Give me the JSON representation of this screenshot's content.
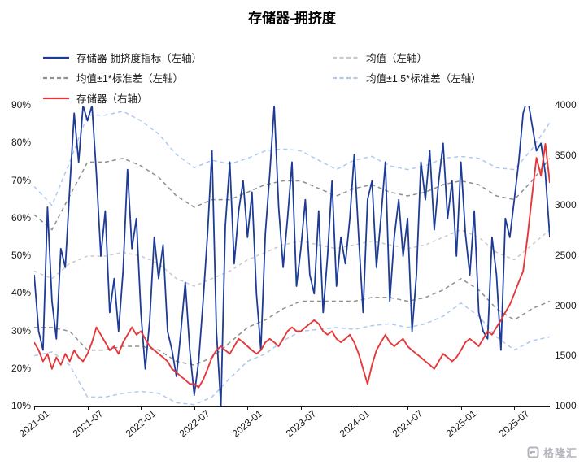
{
  "title": "存储器-拥挤度",
  "watermark": {
    "text": "格隆汇"
  },
  "chart_data": {
    "type": "line",
    "title": "存储器-拥挤度",
    "legend_position": "top-left, two columns",
    "grid": false,
    "xlabel": "",
    "x_unit": "months since 2021-01",
    "x_range": [
      0,
      58
    ],
    "x_tick_months": [
      0,
      6,
      12,
      18,
      24,
      30,
      36,
      42,
      48,
      54
    ],
    "x_tick_labels": [
      "2021-01",
      "2021-07",
      "2022-01",
      "2022-07",
      "2023-01",
      "2023-07",
      "2024-01",
      "2024-07",
      "2025-01",
      "2025-07"
    ],
    "left_axis": {
      "min": 10,
      "max": 90,
      "unit": "%",
      "tick_values": [
        90,
        80,
        70,
        60,
        50,
        40,
        30,
        20,
        10
      ],
      "tick_labels": [
        "90%",
        "80%",
        "70%",
        "60%",
        "50%",
        "40%",
        "30%",
        "20%",
        "10%"
      ]
    },
    "right_axis": {
      "min": 1000,
      "max": 4000,
      "tick_values": [
        4000,
        3500,
        3000,
        2500,
        2000,
        1500,
        1000
      ],
      "tick_labels": [
        "4000",
        "3500",
        "3000",
        "2500",
        "2000",
        "1500",
        "1000"
      ]
    },
    "series": [
      {
        "name": "存储器-拥挤度指标（左轴）",
        "axis": "left",
        "style": "solid",
        "color": "#1e3c96",
        "step_months": 0.5,
        "values": [
          45,
          30,
          25,
          63,
          38,
          28,
          52,
          47,
          68,
          88,
          75,
          90,
          86,
          90,
          72,
          50,
          62,
          35,
          44,
          30,
          46,
          73,
          52,
          60,
          35,
          20,
          33,
          55,
          44,
          53,
          30,
          25,
          18,
          30,
          43,
          25,
          13,
          22,
          38,
          56,
          78,
          30,
          10,
          58,
          75,
          48,
          62,
          70,
          55,
          67,
          40,
          25,
          56,
          72,
          90,
          63,
          47,
          60,
          75,
          42,
          52,
          65,
          45,
          40,
          62,
          35,
          50,
          70,
          42,
          55,
          48,
          60,
          77,
          55,
          35,
          65,
          70,
          47,
          60,
          75,
          38,
          55,
          65,
          50,
          60,
          30,
          45,
          75,
          65,
          78,
          57,
          70,
          80,
          60,
          70,
          50,
          75,
          56,
          45,
          62,
          35,
          30,
          28,
          55,
          45,
          25,
          60,
          55,
          65,
          75,
          88,
          92,
          85,
          78,
          80,
          72,
          55
        ]
      },
      {
        "name": "均值（左轴）",
        "axis": "left",
        "style": "dashed",
        "color": "#c9c9c9",
        "derived": "mean"
      },
      {
        "name": "均值±1*标准差（左轴）",
        "axis": "left",
        "style": "dashed",
        "color": "#8f8f8f",
        "derived": "mean ± 1*std (two lines)"
      },
      {
        "name": "均值±1.5*标准差（左轴）",
        "axis": "left",
        "style": "dashed",
        "color": "#aec9f0",
        "derived": "mean ± 1.5*std (two lines)"
      },
      {
        "name": "存储器（右轴）",
        "axis": "right",
        "style": "solid",
        "color": "#e4393c",
        "step_months": 0.5,
        "values": [
          1640,
          1560,
          1450,
          1525,
          1375,
          1490,
          1415,
          1525,
          1450,
          1560,
          1490,
          1450,
          1525,
          1640,
          1790,
          1715,
          1640,
          1560,
          1600,
          1525,
          1640,
          1715,
          1790,
          1715,
          1750,
          1675,
          1600,
          1560,
          1525,
          1490,
          1450,
          1375,
          1340,
          1300,
          1265,
          1225,
          1225,
          1190,
          1265,
          1375,
          1490,
          1560,
          1600,
          1560,
          1525,
          1600,
          1675,
          1640,
          1600,
          1560,
          1525,
          1560,
          1640,
          1675,
          1640,
          1600,
          1675,
          1750,
          1790,
          1750,
          1750,
          1790,
          1825,
          1860,
          1825,
          1750,
          1715,
          1750,
          1675,
          1640,
          1675,
          1715,
          1640,
          1525,
          1375,
          1225,
          1415,
          1560,
          1640,
          1715,
          1640,
          1600,
          1640,
          1675,
          1600,
          1560,
          1525,
          1490,
          1450,
          1415,
          1375,
          1450,
          1525,
          1490,
          1450,
          1490,
          1560,
          1640,
          1675,
          1640,
          1600,
          1675,
          1750,
          1715,
          1790,
          1860,
          1940,
          2015,
          2125,
          2240,
          2350,
          2700,
          3100,
          3480,
          3300,
          3620,
          3230
        ]
      }
    ],
    "stats": {
      "note": "dashed band lines are mean ± k*std over time, percent on left axis",
      "step_months": 2,
      "mean": [
        46,
        44,
        48,
        50,
        50,
        51,
        50,
        48,
        44,
        42,
        44,
        46,
        49,
        51,
        53,
        54,
        53,
        52,
        53,
        54,
        53,
        52,
        53,
        55,
        57,
        55,
        51,
        49,
        53,
        57
      ],
      "std": [
        15,
        13,
        18,
        25,
        25,
        25,
        24,
        23,
        22,
        21,
        21,
        19,
        18,
        18,
        17,
        16,
        15,
        14,
        15,
        15,
        14,
        14,
        14,
        14,
        13,
        14,
        15,
        16,
        17,
        19
      ]
    }
  }
}
